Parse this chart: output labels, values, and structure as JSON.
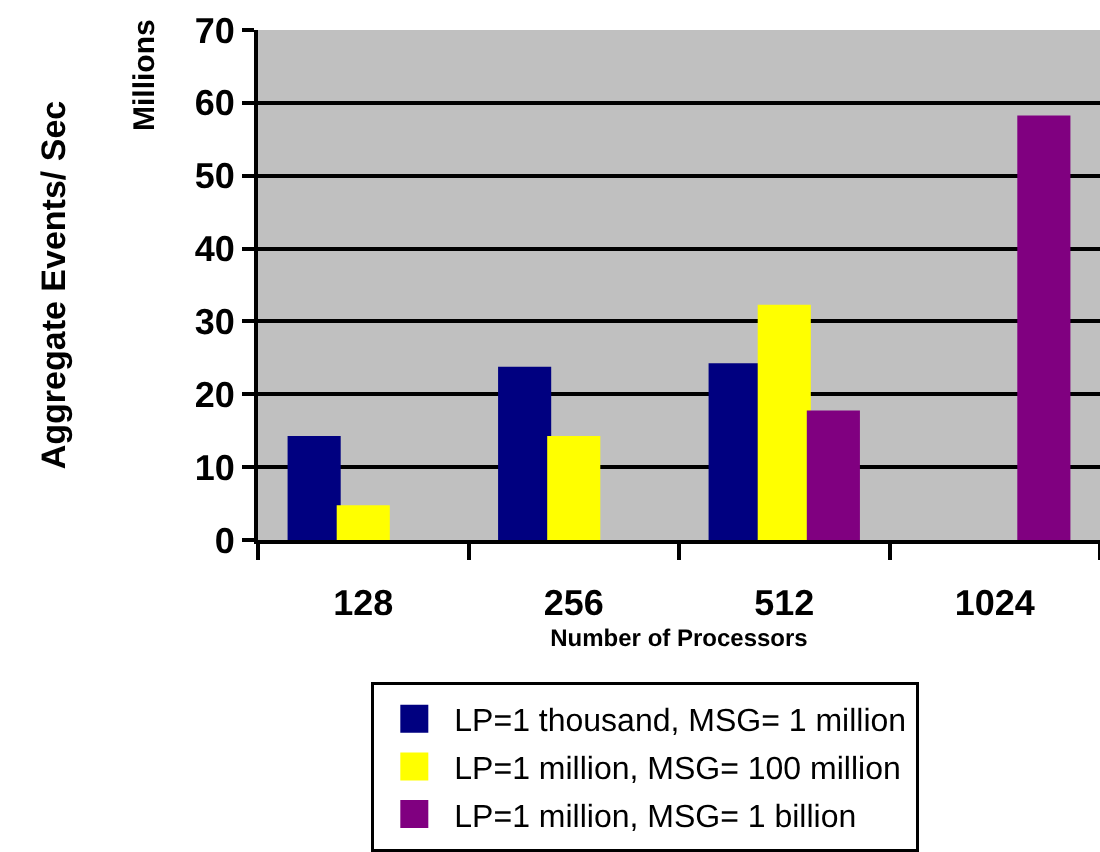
{
  "chart_data": {
    "type": "bar",
    "xlabel": "Number of Processors",
    "ylabel": "Aggregate Events/ Sec",
    "annotations": [
      "Millions"
    ],
    "categories": [
      "128",
      "256",
      "512",
      "1024"
    ],
    "series": [
      {
        "name": "LP=1 thousand, MSG= 1 million",
        "color": "#000080",
        "values": [
          14,
          23.5,
          24,
          null
        ]
      },
      {
        "name": "LP=1 million, MSG= 100 million",
        "color": "#ffff00",
        "values": [
          4.5,
          14,
          32,
          null
        ]
      },
      {
        "name": "LP=1 million, MSG= 1 billion",
        "color": "#800080",
        "values": [
          null,
          null,
          17.5,
          58
        ]
      }
    ],
    "ylim": [
      0,
      70
    ],
    "yticks": [
      0,
      10,
      20,
      30,
      40,
      50,
      60,
      70
    ],
    "grid": "y",
    "legend": "bottom"
  }
}
